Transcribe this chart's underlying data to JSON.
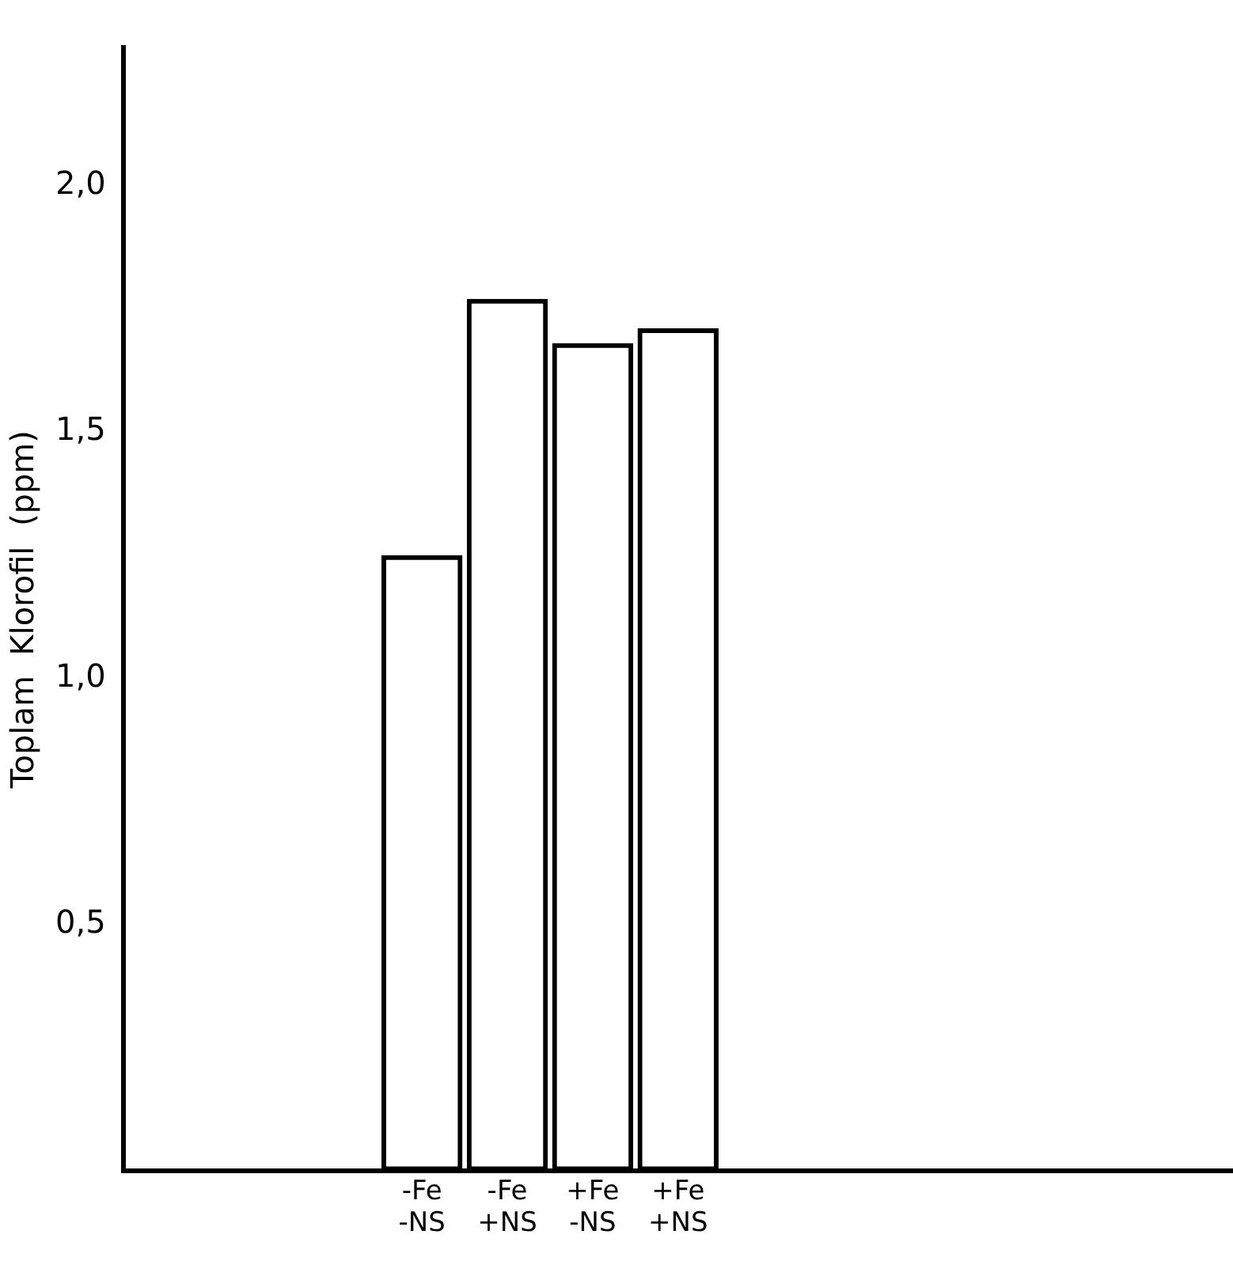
{
  "chart_data": {
    "type": "bar",
    "ylabel": "Toplam  Klorofil  (ppm)",
    "categories": [
      null,
      null,
      null,
      "-Fe\n-NS",
      "-Fe\n+NS",
      "+Fe\n-NS",
      "+Fe\n+NS",
      null,
      null,
      null,
      null,
      null,
      null
    ],
    "values": [
      null,
      null,
      null,
      1.25,
      1.77,
      1.68,
      1.71,
      null,
      null,
      null,
      null,
      null,
      null
    ],
    "color": "#000000",
    "ylim": [
      0,
      2.28
    ],
    "yticks": [
      {
        "value": 0.5,
        "label": "0,5"
      },
      {
        "value": 1.0,
        "label": "1,0"
      },
      {
        "value": 1.5,
        "label": "1,5"
      },
      {
        "value": 2.0,
        "label": "2,0"
      }
    ],
    "grid": false,
    "legend": false
  }
}
